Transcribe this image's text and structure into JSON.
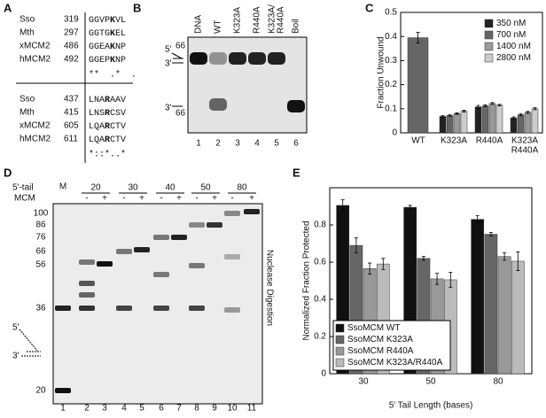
{
  "panel_labels": [
    "A",
    "B",
    "C",
    "D",
    "E"
  ],
  "alignment": {
    "blocks": [
      {
        "rows": [
          {
            "species": "Sso",
            "position": 319,
            "pre": "GGVP",
            "key": "K",
            "post": "VL"
          },
          {
            "species": "Mth",
            "position": 297,
            "pre": "GGTG",
            "key": "K",
            "post": "EL"
          },
          {
            "species": "xMCM2",
            "position": 486,
            "pre": "GGEA",
            "key": "K",
            "post": "NP"
          },
          {
            "species": "hMCM2",
            "position": 492,
            "pre": "GGEP",
            "key": "K",
            "post": "NP"
          }
        ],
        "conservation": "**  .*  ."
      },
      {
        "rows": [
          {
            "species": "Sso",
            "position": 437,
            "pre": "LNA",
            "key": "R",
            "post": "AAV"
          },
          {
            "species": "Mth",
            "position": 415,
            "pre": "LNS",
            "key": "R",
            "post": "CSV"
          },
          {
            "species": "xMCM2",
            "position": 605,
            "pre": "LQA",
            "key": "R",
            "post": "CTV"
          },
          {
            "species": "hMCM2",
            "position": 611,
            "pre": "LQA",
            "key": "R",
            "post": "CTV"
          }
        ],
        "conservation": "*::*..*"
      }
    ]
  },
  "gel_b": {
    "lanes": [
      [
        "DNA"
      ],
      [
        "WT"
      ],
      [
        "K323A"
      ],
      [
        "R440A"
      ],
      [
        "K323A/",
        "R440A"
      ],
      [
        "Boil"
      ]
    ],
    "lane_numbers": [
      1,
      2,
      3,
      4,
      5,
      6
    ],
    "substrate": {
      "five": "5'",
      "length": "66",
      "three": "3'"
    },
    "product": {
      "three": "3'",
      "length": "66"
    }
  },
  "gel_d": {
    "tail_label": "5'-tail",
    "tails": [
      20,
      30,
      40,
      50,
      80
    ],
    "mcm_label": "MCM",
    "mcm": [
      "-",
      "+",
      "-",
      "+",
      "-",
      "+",
      "-",
      "+",
      "-",
      "+"
    ],
    "marker": "M",
    "sizes": [
      100,
      86,
      76,
      66,
      56,
      36,
      20
    ],
    "side_label": "Nuclease Digestion",
    "lane_numbers": [
      1,
      2,
      3,
      4,
      5,
      6,
      7,
      8,
      9,
      10,
      11
    ],
    "schematic": {
      "five": "5'",
      "three": "3'"
    }
  },
  "chart_data": [
    {
      "type": "bar",
      "ylabel": "Fraction Unwound",
      "categories": [
        [
          "WT"
        ],
        [
          "K323A"
        ],
        [
          "R440A"
        ],
        [
          "K323A",
          "R440A"
        ]
      ],
      "series": [
        {
          "name": "350 nM",
          "color": "#222222",
          "values": [
            null,
            0.068,
            0.108,
            0.062
          ],
          "errors": [
            null,
            0.003,
            0.006,
            0.004
          ]
        },
        {
          "name": "700 nM",
          "color": "#666666",
          "values": [
            0.395,
            0.072,
            0.112,
            0.075
          ],
          "errors": [
            0.022,
            0.003,
            0.004,
            0.004
          ]
        },
        {
          "name": "1400 nM",
          "color": "#999999",
          "values": [
            null,
            0.08,
            0.122,
            0.085
          ],
          "errors": [
            null,
            0.003,
            0.004,
            0.004
          ]
        },
        {
          "name": "2800 nM",
          "color": "#cccccc",
          "values": [
            null,
            0.09,
            0.115,
            0.1
          ],
          "errors": [
            null,
            0.004,
            0.003,
            0.004
          ]
        }
      ],
      "ylim": [
        0,
        0.5
      ],
      "yticks": [
        0,
        0.1,
        0.2,
        0.3,
        0.4,
        0.5
      ],
      "grid": false,
      "legend": "upper right"
    },
    {
      "type": "bar",
      "ylabel": "Normalized Fraction Protected",
      "xlabel": "5' Tail Length (bases)",
      "categories": [
        [
          "30"
        ],
        [
          "50"
        ],
        [
          "80"
        ]
      ],
      "series": [
        {
          "name": "SsoMCM WT",
          "color": "#111111",
          "values": [
            0.905,
            0.895,
            0.83
          ],
          "errors": [
            0.03,
            0.01,
            0.02
          ]
        },
        {
          "name": "SsoMCM K323A",
          "color": "#666666",
          "values": [
            0.69,
            0.62,
            0.75
          ],
          "errors": [
            0.04,
            0.01,
            0.01
          ]
        },
        {
          "name": "SsoMCM R440A",
          "color": "#999999",
          "values": [
            0.565,
            0.51,
            0.63
          ],
          "errors": [
            0.03,
            0.03,
            0.02
          ]
        },
        {
          "name": "SsoMCM K323A/R440A",
          "color": "#bbbbbb",
          "values": [
            0.59,
            0.505,
            0.605
          ],
          "errors": [
            0.03,
            0.04,
            0.05
          ]
        }
      ],
      "ylim": [
        0,
        1
      ],
      "yticks": [
        0,
        0.2,
        0.4,
        0.6,
        0.8
      ],
      "grid": false,
      "legend": "lower left"
    }
  ]
}
